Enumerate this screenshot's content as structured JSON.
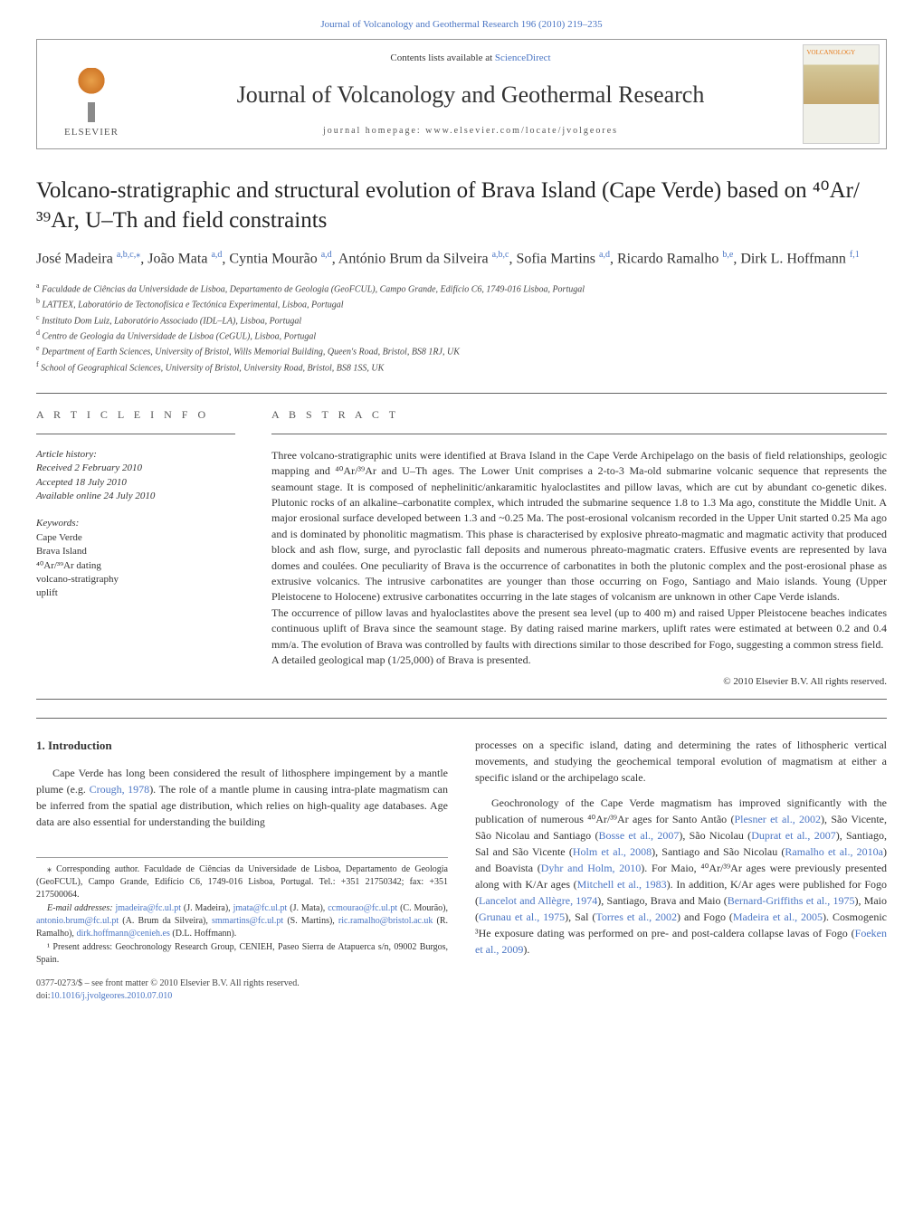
{
  "header": {
    "top_journal_link": "Journal of Volcanology and Geothermal Research 196 (2010) 219–235",
    "contents_text": "Contents lists available at ",
    "sciencedirect": "ScienceDirect",
    "journal_name": "Journal of Volcanology and Geothermal Research",
    "homepage_text": "journal homepage: www.elsevier.com/locate/jvolgeores",
    "elsevier_label": "ELSEVIER",
    "cover_title": "VOLCANOLOGY"
  },
  "article": {
    "title": "Volcano-stratigraphic and structural evolution of Brava Island (Cape Verde) based on ⁴⁰Ar/³⁹Ar, U–Th and field constraints",
    "authors_html": [
      {
        "name": "José Madeira ",
        "sup": "a,b,c,⁎"
      },
      {
        "name": ", João Mata ",
        "sup": "a,d"
      },
      {
        "name": ", Cyntia Mourão ",
        "sup": "a,d"
      },
      {
        "name": ", António Brum da Silveira ",
        "sup": "a,b,c"
      },
      {
        "name": ", Sofia Martins ",
        "sup": "a,d"
      },
      {
        "name": ", Ricardo Ramalho ",
        "sup": "b,e"
      },
      {
        "name": ", Dirk L. Hoffmann ",
        "sup": "f,1"
      }
    ],
    "affiliations": [
      {
        "sup": "a",
        "text": " Faculdade de Ciências da Universidade de Lisboa, Departamento de Geologia (GeoFCUL), Campo Grande, Edifício C6, 1749-016 Lisboa, Portugal"
      },
      {
        "sup": "b",
        "text": " LATTEX, Laboratório de Tectonofísica e Tectónica Experimental, Lisboa, Portugal"
      },
      {
        "sup": "c",
        "text": " Instituto Dom Luiz, Laboratório Associado (IDL–LA), Lisboa, Portugal"
      },
      {
        "sup": "d",
        "text": " Centro de Geologia da Universidade de Lisboa (CeGUL), Lisboa, Portugal"
      },
      {
        "sup": "e",
        "text": " Department of Earth Sciences, University of Bristol, Wills Memorial Building, Queen's Road, Bristol, BS8 1RJ, UK"
      },
      {
        "sup": "f",
        "text": " School of Geographical Sciences, University of Bristol, University Road, Bristol, BS8 1SS, UK"
      }
    ]
  },
  "info": {
    "article_info_label": "A R T I C L E   I N F O",
    "abstract_label": "A B S T R A C T",
    "history_label": "Article history:",
    "received": "Received 2 February 2010",
    "accepted": "Accepted 18 July 2010",
    "available": "Available online 24 July 2010",
    "keywords_label": "Keywords:",
    "keywords": [
      "Cape Verde",
      "Brava Island",
      "⁴⁰Ar/³⁹Ar dating",
      "volcano-stratigraphy",
      "uplift"
    ]
  },
  "abstract": {
    "p1": "Three volcano-stratigraphic units were identified at Brava Island in the Cape Verde Archipelago on the basis of field relationships, geologic mapping and ⁴⁰Ar/³⁹Ar and U–Th ages. The Lower Unit comprises a 2-to-3 Ma-old submarine volcanic sequence that represents the seamount stage. It is composed of nephelinitic/ankaramitic hyaloclastites and pillow lavas, which are cut by abundant co-genetic dikes. Plutonic rocks of an alkaline–carbonatite complex, which intruded the submarine sequence 1.8 to 1.3 Ma ago, constitute the Middle Unit. A major erosional surface developed between 1.3 and ~0.25 Ma. The post-erosional volcanism recorded in the Upper Unit started 0.25 Ma ago and is dominated by phonolitic magmatism. This phase is characterised by explosive phreato-magmatic and magmatic activity that produced block and ash flow, surge, and pyroclastic fall deposits and numerous phreato-magmatic craters. Effusive events are represented by lava domes and coulées. One peculiarity of Brava is the occurrence of carbonatites in both the plutonic complex and the post-erosional phase as extrusive volcanics. The intrusive carbonatites are younger than those occurring on Fogo, Santiago and Maio islands. Young (Upper Pleistocene to Holocene) extrusive carbonatites occurring in the late stages of volcanism are unknown in other Cape Verde islands.",
    "p2": "The occurrence of pillow lavas and hyaloclastites above the present sea level (up to 400 m) and raised Upper Pleistocene beaches indicates continuous uplift of Brava since the seamount stage. By dating raised marine markers, uplift rates were estimated at between 0.2 and 0.4 mm/a. The evolution of Brava was controlled by faults with directions similar to those described for Fogo, suggesting a common stress field.",
    "p3": "A detailed geological map (1/25,000) of Brava is presented.",
    "copyright": "© 2010 Elsevier B.V. All rights reserved."
  },
  "body": {
    "intro_heading": "1. Introduction",
    "left_p1_a": "Cape Verde has long been considered the result of lithosphere impingement by a mantle plume (e.g. ",
    "left_p1_cite1": "Crough, 1978",
    "left_p1_b": "). The role of a mantle plume in causing intra-plate magmatism can be inferred from the spatial age distribution, which relies on high-quality age databases. Age data are also essential for understanding the building",
    "right_p1": "processes on a specific island, dating and determining the rates of lithospheric vertical movements, and studying the geochemical temporal evolution of magmatism at either a specific island or the archipelago scale.",
    "right_p2_a": "Geochronology of the Cape Verde magmatism has improved significantly with the publication of numerous ⁴⁰Ar/³⁹Ar ages for Santo Antão (",
    "right_cite_plesner": "Plesner et al., 2002",
    "right_p2_b": "), São Vicente, São Nicolau and Santiago (",
    "right_cite_bosse": "Bosse et al., 2007",
    "right_p2_c": "), São Nicolau (",
    "right_cite_duprat": "Duprat et al., 2007",
    "right_p2_d": "), Santiago, Sal and São Vicente (",
    "right_cite_holm": "Holm et al., 2008",
    "right_p2_e": "), Santiago and São Nicolau (",
    "right_cite_ramalho": "Ramalho et al., 2010a",
    "right_p2_f": ") and Boavista (",
    "right_cite_dyhr": "Dyhr and Holm, 2010",
    "right_p2_g": "). For Maio, ⁴⁰Ar/³⁹Ar ages were previously presented along with K/Ar ages (",
    "right_cite_mitchell": "Mitchell et al., 1983",
    "right_p2_h": "). In addition, K/Ar ages were published for Fogo (",
    "right_cite_lancelot": "Lancelot and Allègre, 1974",
    "right_p2_i": "), Santiago, Brava and Maio (",
    "right_cite_bernard": "Bernard-Griffiths et al., 1975",
    "right_p2_j": "), Maio (",
    "right_cite_grunau": "Grunau et al., 1975",
    "right_p2_k": "), Sal (",
    "right_cite_torres": "Torres et al., 2002",
    "right_p2_l": ") and Fogo (",
    "right_cite_madeira": "Madeira et al., 2005",
    "right_p2_m": "). Cosmogenic ³He exposure dating was performed on pre- and post-caldera collapse lavas of Fogo (",
    "right_cite_foeken": "Foeken et al., 2009",
    "right_p2_n": ")."
  },
  "footnotes": {
    "corresp": "⁎ Corresponding author. Faculdade de Ciências da Universidade de Lisboa, Departamento de Geologia (GeoFCUL), Campo Grande, Edifício C6, 1749-016 Lisboa, Portugal. Tel.: +351 21750342; fax: +351 217500064.",
    "email_label": "E-mail addresses: ",
    "emails": [
      {
        "addr": "jmadeira@fc.ul.pt",
        "who": " (J. Madeira), "
      },
      {
        "addr": "jmata@fc.ul.pt",
        "who": " (J. Mata), "
      },
      {
        "addr": "ccmourao@fc.ul.pt",
        "who": " (C. Mourão), "
      },
      {
        "addr": "antonio.brum@fc.ul.pt",
        "who": " (A. Brum da Silveira), "
      },
      {
        "addr": "smmartins@fc.ul.pt",
        "who": " (S. Martins), "
      },
      {
        "addr": "ric.ramalho@bristol.ac.uk",
        "who": " (R. Ramalho), "
      },
      {
        "addr": "dirk.hoffmann@cenieh.es",
        "who": " (D.L. Hoffmann)."
      }
    ],
    "present": "¹ Present address: Geochronology Research Group, CENIEH, Paseo Sierra de Atapuerca s/n, 09002 Burgos, Spain.",
    "doi1": "0377-0273/$ – see front matter © 2010 Elsevier B.V. All rights reserved.",
    "doi2_label": "doi:",
    "doi2": "10.1016/j.jvolgeores.2010.07.010"
  },
  "colors": {
    "link": "#4a75c4",
    "text": "#333333",
    "rule": "#666666",
    "elsevier_orange": "#e67817"
  }
}
